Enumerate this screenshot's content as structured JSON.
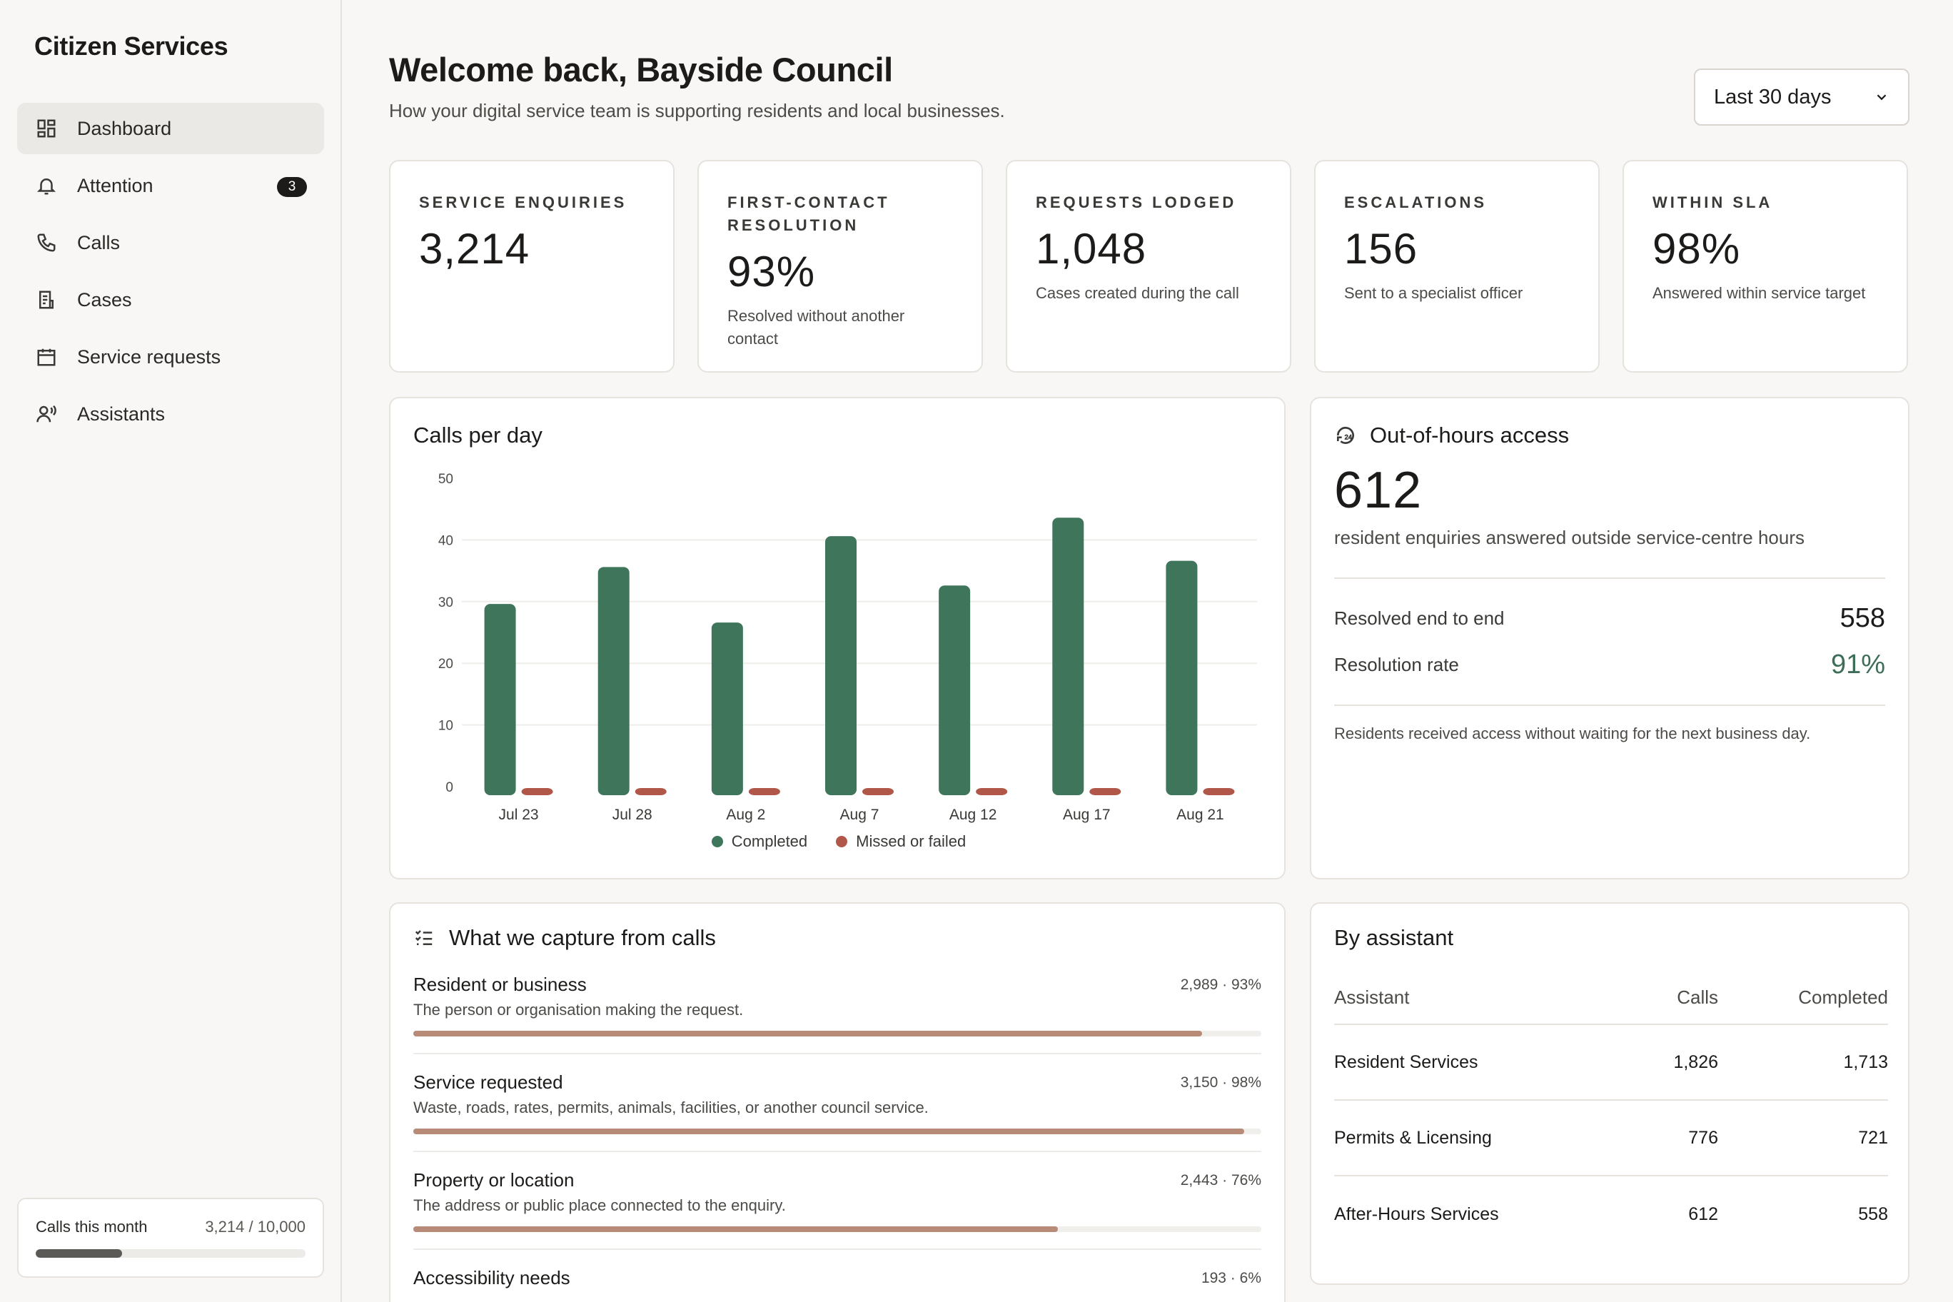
{
  "app": {
    "title": "Citizen Services"
  },
  "sidebar": {
    "items": [
      {
        "label": "Dashboard",
        "icon": "dashboard-icon",
        "active": true
      },
      {
        "label": "Attention",
        "icon": "bell-icon",
        "badge": "3"
      },
      {
        "label": "Calls",
        "icon": "phone-icon"
      },
      {
        "label": "Cases",
        "icon": "document-icon"
      },
      {
        "label": "Service requests",
        "icon": "calendar-icon"
      },
      {
        "label": "Assistants",
        "icon": "assistant-icon"
      }
    ],
    "usage": {
      "label": "Calls this month",
      "value": "3,214 / 10,000",
      "fraction": 0.3214
    }
  },
  "header": {
    "title": "Welcome back, Bayside Council",
    "subtitle": "How your digital service team is supporting residents and local businesses.",
    "range": "Last 30 days"
  },
  "kpis": [
    {
      "label": "Service enquiries",
      "value": "3,214",
      "note": ""
    },
    {
      "label": "First-contact resolution",
      "value": "93%",
      "note": "Resolved without another contact"
    },
    {
      "label": "Requests lodged",
      "value": "1,048",
      "note": "Cases created during the call"
    },
    {
      "label": "Escalations",
      "value": "156",
      "note": "Sent to a specialist officer"
    },
    {
      "label": "Within SLA",
      "value": "98%",
      "note": "Answered within service target"
    }
  ],
  "chart_data": {
    "type": "bar",
    "title": "Calls per day",
    "categories": [
      "Jul 23",
      "Jul 28",
      "Aug 2",
      "Aug 7",
      "Aug 12",
      "Aug 17",
      "Aug 21"
    ],
    "series": [
      {
        "name": "Completed",
        "color": "#3f765b",
        "values": [
          31,
          37,
          28,
          42,
          34,
          45,
          38
        ]
      },
      {
        "name": "Missed or failed",
        "color": "#b0574a",
        "values": [
          1,
          1,
          1,
          1,
          1,
          1,
          1
        ]
      }
    ],
    "yticks": [
      0,
      10,
      20,
      30,
      40,
      50
    ],
    "ylim": [
      0,
      50
    ],
    "grid": true,
    "legend": "bottom-center"
  },
  "out_of_hours": {
    "title": "Out-of-hours access",
    "value": "612",
    "note": "resident enquiries answered outside service-centre hours",
    "rows": [
      {
        "label": "Resolved end to end",
        "value": "558"
      },
      {
        "label": "Resolution rate",
        "value": "91%"
      }
    ],
    "footer": "Residents received access without waiting for the next business day."
  },
  "capture": {
    "title": "What we capture from calls",
    "items": [
      {
        "name": "Resident or business",
        "desc": "The person or organisation making the request.",
        "stat": "2,989 · 93%",
        "fraction": 0.93
      },
      {
        "name": "Service requested",
        "desc": "Waste, roads, rates, permits, animals, facilities, or another council service.",
        "stat": "3,150 · 98%",
        "fraction": 0.98
      },
      {
        "name": "Property or location",
        "desc": "The address or public place connected to the enquiry.",
        "stat": "2,443 · 76%",
        "fraction": 0.76
      },
      {
        "name": "Accessibility needs",
        "desc": "",
        "stat": "193 · 6%",
        "fraction": 0.06
      }
    ]
  },
  "assistants": {
    "title": "By assistant",
    "columns": [
      "Assistant",
      "Calls",
      "Completed"
    ],
    "rows": [
      {
        "name": "Resident Services",
        "calls": "1,826",
        "completed": "1,713"
      },
      {
        "name": "Permits & Licensing",
        "calls": "776",
        "completed": "721"
      },
      {
        "name": "After-Hours Services",
        "calls": "612",
        "completed": "558"
      }
    ]
  }
}
